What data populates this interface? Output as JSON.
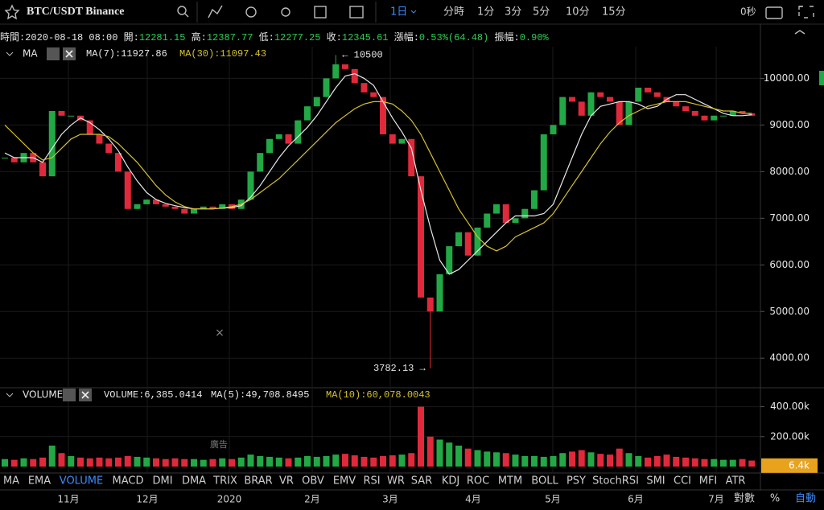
{
  "toolbar": {
    "symbol": "BTC/USDT  Binance",
    "intervals": [
      "1日",
      "分時",
      "1分",
      "3分",
      "5分",
      "10分",
      "15分"
    ],
    "countdown": "0秒"
  },
  "info": [
    {
      "label": "時間:",
      "value": "2020-08-18 08:00"
    },
    {
      "label": "開:",
      "value": "12281.15"
    },
    {
      "label": "高:",
      "value": "12387.77"
    },
    {
      "label": "低:",
      "value": "12277.25"
    },
    {
      "label": "收:",
      "value": "12345.61"
    },
    {
      "label": "漲幅:",
      "value": "0.53%(64.48)"
    },
    {
      "label": "振幅:",
      "value": "0.90%"
    }
  ],
  "chart_data": [
    {
      "type": "candlestick",
      "legend_title": "MA",
      "ma_labels": [
        "MA(7):11927.86",
        "MA(30):11097.43"
      ],
      "ma_colors": [
        "#e8e8e8",
        "#d6c22a"
      ],
      "up_color": "#23a846",
      "down_color": "#e0293b",
      "close": [
        8300,
        8200,
        8400,
        8200,
        7900,
        9300,
        9200,
        9200,
        9100,
        8800,
        8600,
        8400,
        8000,
        7200,
        7300,
        7400,
        7300,
        7250,
        7200,
        7100,
        7200,
        7250,
        7200,
        7300,
        7200,
        7400,
        8000,
        8400,
        8700,
        8800,
        8600,
        9100,
        9400,
        9600,
        10000,
        10300,
        10200,
        9900,
        9700,
        9600,
        8800,
        8600,
        8700,
        7900,
        5300,
        5000,
        5800,
        6400,
        6700,
        6200,
        6800,
        7100,
        7300,
        6900,
        7000,
        7200,
        7600,
        8800,
        9000,
        9600,
        9500,
        9200,
        9700,
        9600,
        9500,
        9000,
        9500,
        9800,
        9700,
        9600,
        9500,
        9400,
        9300,
        9200,
        9100,
        9200,
        9200,
        9300,
        9250,
        9200
      ],
      "ma7": [
        8400,
        8300,
        8300,
        8300,
        8200,
        8500,
        8800,
        9000,
        9150,
        9050,
        8900,
        8700,
        8450,
        8100,
        7800,
        7550,
        7400,
        7320,
        7270,
        7230,
        7200,
        7200,
        7200,
        7220,
        7230,
        7270,
        7450,
        7700,
        8000,
        8300,
        8550,
        8750,
        8950,
        9200,
        9500,
        9800,
        10050,
        10100,
        10000,
        9850,
        9500,
        9150,
        8850,
        8500,
        7600,
        6800,
        6100,
        5800,
        5900,
        6100,
        6300,
        6500,
        6700,
        6900,
        7050,
        7050,
        7050,
        7100,
        7300,
        7800,
        8300,
        8800,
        9200,
        9400,
        9450,
        9500,
        9500,
        9450,
        9350,
        9400,
        9550,
        9650,
        9650,
        9550,
        9450,
        9350,
        9250,
        9200,
        9200,
        9220
      ],
      "ma30": [
        9000,
        8800,
        8600,
        8400,
        8250,
        8300,
        8500,
        8700,
        8800,
        8800,
        8800,
        8750,
        8600,
        8400,
        8200,
        7950,
        7700,
        7500,
        7350,
        7250,
        7200,
        7200,
        7200,
        7220,
        7250,
        7300,
        7400,
        7550,
        7700,
        7850,
        8050,
        8250,
        8450,
        8650,
        8850,
        9050,
        9200,
        9350,
        9450,
        9500,
        9500,
        9450,
        9300,
        9100,
        8800,
        8400,
        8000,
        7600,
        7200,
        6900,
        6600,
        6400,
        6300,
        6400,
        6600,
        6700,
        6800,
        6900,
        7100,
        7400,
        7700,
        8000,
        8300,
        8600,
        8850,
        9050,
        9200,
        9300,
        9400,
        9450,
        9500,
        9500,
        9500,
        9450,
        9400,
        9350,
        9300,
        9300,
        9250,
        9250
      ],
      "ylim": [
        3400,
        10680
      ],
      "yticks": [
        {
          "value": 10000,
          "label": "10000.00"
        },
        {
          "value": 9000,
          "label": "9000.00"
        },
        {
          "value": 8000,
          "label": "8000.00"
        },
        {
          "value": 7000,
          "label": "7000.00"
        },
        {
          "value": 6000,
          "label": "6000.00"
        },
        {
          "value": 5000,
          "label": "5000.00"
        },
        {
          "value": 4000,
          "label": "4000.00"
        }
      ],
      "annotations": [
        {
          "value": 10500,
          "label": "← 10500"
        },
        {
          "value": 3782.13,
          "label": "3782.13 →"
        }
      ]
    },
    {
      "type": "bar",
      "legend_title": "VOLUME",
      "legend_labels": [
        "VOLUME:6,385.0414",
        "MA(5):49,708.8495",
        "MA(10):60,078.0043"
      ],
      "legend_colors": [
        "#e8e8e8",
        "#e8e8e8",
        "#d6c22a"
      ],
      "values": [
        50000,
        45000,
        55000,
        50000,
        60000,
        140000,
        90000,
        70000,
        60000,
        55000,
        60000,
        55000,
        60000,
        70000,
        65000,
        60000,
        55000,
        50000,
        55000,
        50000,
        50000,
        45000,
        50000,
        55000,
        50000,
        60000,
        80000,
        70000,
        65000,
        60000,
        55000,
        60000,
        70000,
        65000,
        70000,
        80000,
        85000,
        75000,
        65000,
        60000,
        70000,
        75000,
        80000,
        90000,
        400000,
        200000,
        180000,
        160000,
        140000,
        120000,
        110000,
        100000,
        95000,
        90000,
        80000,
        70000,
        70000,
        65000,
        70000,
        90000,
        100000,
        110000,
        95000,
        85000,
        80000,
        120000,
        90000,
        70000,
        60000,
        70000,
        80000,
        65000,
        60000,
        55000,
        50000,
        50000,
        45000,
        45000,
        50000,
        40000
      ],
      "ylim": [
        0,
        430000
      ],
      "yticks": [
        {
          "value": 400000,
          "label": "400.00k"
        },
        {
          "value": 200000,
          "label": "200.00k"
        }
      ],
      "current": {
        "value": 6385.0414,
        "label": "6.4k"
      }
    }
  ],
  "x_axis": {
    "labels": [
      "11月",
      "12月",
      "2020",
      "2月",
      "3月",
      "4月",
      "5月",
      "6月",
      "7月"
    ]
  },
  "indicator_tabs": [
    "MA",
    "EMA",
    "VOLUME",
    "MACD",
    "DMI",
    "DMA",
    "TRIX",
    "BRAR",
    "VR",
    "OBV",
    "EMV",
    "RSI",
    "WR",
    "SAR",
    "KDJ",
    "ROC",
    "MTM",
    "BOLL",
    "PSY",
    "StochRSI",
    "SMI",
    "CCI",
    "MFI",
    "ATR"
  ],
  "active_tab": "VOLUME",
  "footer": [
    "對數",
    "%",
    "自動"
  ],
  "ad_label": "廣告",
  "overlay_close": "×"
}
